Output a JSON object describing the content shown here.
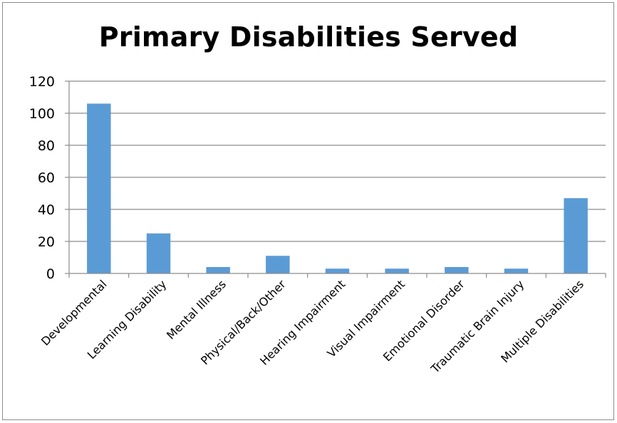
{
  "chart_data": {
    "type": "bar",
    "title": "Primary Disabilities Served",
    "categories": [
      "Developmental",
      "Learning Disability",
      "Mental Illness",
      "Physical/Back/Other",
      "Hearing Impairment",
      "Visual Impairment",
      "Emotional Disorder",
      "Traumatic Brain Injury",
      "Multiple Disabilities"
    ],
    "values": [
      106,
      25,
      4,
      11,
      3,
      3,
      4,
      3,
      47
    ],
    "ylim": [
      0,
      120
    ],
    "yticks": [
      0,
      20,
      40,
      60,
      80,
      100,
      120
    ],
    "xlabel": "",
    "ylabel": "",
    "grid": true,
    "legend": "none",
    "bar_color": "#5b9bd5",
    "grid_color": "#8c8c8c",
    "axis_color": "#8c8c8c"
  }
}
